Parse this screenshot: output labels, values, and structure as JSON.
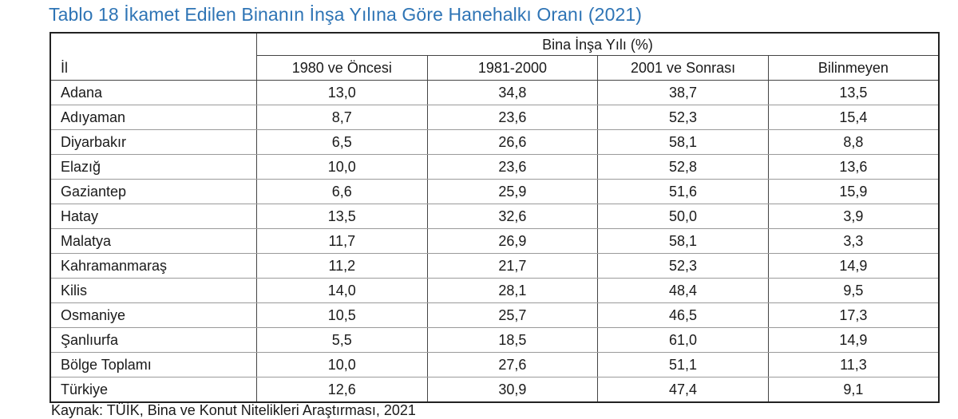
{
  "title": "Tablo 18 İkamet Edilen Binanın İnşa Yılına Göre Hanehalkı Oranı (2021)",
  "table": {
    "group_header": "Bina İnşa Yılı (%)",
    "row_header": "İl",
    "columns": [
      "1980 ve Öncesi",
      "1981-2000",
      "2001 ve Sonrası",
      "Bilinmeyen"
    ],
    "rows": [
      {
        "il": "Adana",
        "values": [
          "13,0",
          "34,8",
          "38,7",
          "13,5"
        ]
      },
      {
        "il": "Adıyaman",
        "values": [
          "8,7",
          "23,6",
          "52,3",
          "15,4"
        ]
      },
      {
        "il": "Diyarbakır",
        "values": [
          "6,5",
          "26,6",
          "58,1",
          "8,8"
        ]
      },
      {
        "il": "Elazığ",
        "values": [
          "10,0",
          "23,6",
          "52,8",
          "13,6"
        ]
      },
      {
        "il": "Gaziantep",
        "values": [
          "6,6",
          "25,9",
          "51,6",
          "15,9"
        ]
      },
      {
        "il": "Hatay",
        "values": [
          "13,5",
          "32,6",
          "50,0",
          "3,9"
        ]
      },
      {
        "il": "Malatya",
        "values": [
          "11,7",
          "26,9",
          "58,1",
          "3,3"
        ]
      },
      {
        "il": "Kahramanmaraş",
        "values": [
          "11,2",
          "21,7",
          "52,3",
          "14,9"
        ]
      },
      {
        "il": "Kilis",
        "values": [
          "14,0",
          "28,1",
          "48,4",
          "9,5"
        ]
      },
      {
        "il": "Osmaniye",
        "values": [
          "10,5",
          "25,7",
          "46,5",
          "17,3"
        ]
      },
      {
        "il": "Şanlıurfa",
        "values": [
          "5,5",
          "18,5",
          "61,0",
          "14,9"
        ]
      },
      {
        "il": "Bölge Toplamı",
        "values": [
          "10,0",
          "27,6",
          "51,1",
          "11,3"
        ]
      },
      {
        "il": "Türkiye",
        "values": [
          "12,6",
          "30,9",
          "47,4",
          "9,1"
        ]
      }
    ]
  },
  "source": "Kaynak: TÜİK, Bina ve Konut Nitelikleri Araştırması, 2021"
}
